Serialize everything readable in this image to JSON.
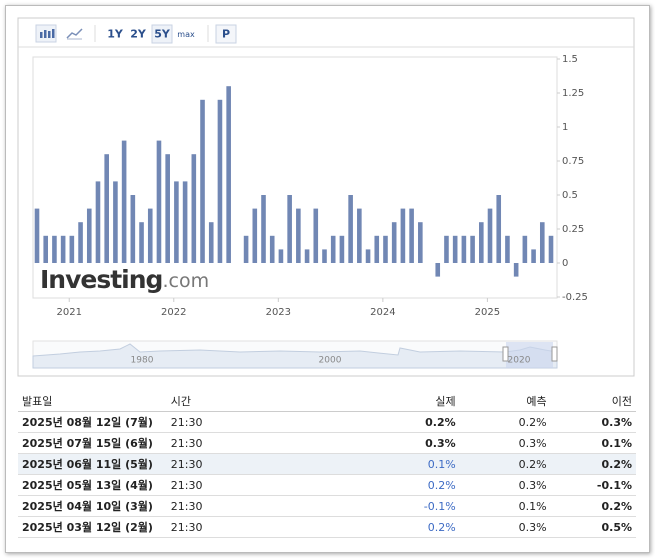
{
  "toolbar": {
    "ranges": [
      "1Y",
      "2Y",
      "5Y",
      "max"
    ],
    "selected": 2,
    "p_button": "P"
  },
  "chart_data": {
    "type": "bar",
    "color": "#7187b4",
    "categories": [
      null,
      null,
      null,
      null,
      null,
      null,
      null,
      null,
      null,
      null,
      null,
      null,
      null,
      null,
      null,
      null,
      null,
      null,
      null,
      null,
      null,
      null,
      null,
      null,
      null,
      null,
      null,
      null,
      null,
      null,
      null,
      null,
      null,
      null,
      null,
      null,
      null,
      null,
      null,
      null,
      null,
      null,
      null,
      null,
      null,
      null,
      null,
      null,
      null,
      null,
      null,
      null,
      null,
      null,
      null,
      null,
      null,
      null,
      null,
      null
    ],
    "values": [
      0.4,
      0.2,
      0.2,
      0.2,
      0.2,
      0.3,
      0.4,
      0.6,
      0.8,
      0.6,
      0.9,
      0.5,
      0.3,
      0.4,
      0.9,
      0.8,
      0.6,
      0.6,
      0.8,
      1.2,
      0.3,
      1.2,
      1.3,
      0,
      0.2,
      0.4,
      0.5,
      0.2,
      0.1,
      0.5,
      0.4,
      0.1,
      0.4,
      0.1,
      0.2,
      0.2,
      0.5,
      0.4,
      0.1,
      0.2,
      0.2,
      0.3,
      0.4,
      0.4,
      0.3,
      0,
      -0.1,
      0.2,
      0.2,
      0.2,
      0.2,
      0.3,
      0.4,
      0.5,
      0.2,
      -0.1,
      0.2,
      0.1,
      0.3,
      0.2
    ],
    "ylim": [
      -0.25,
      1.5
    ],
    "yticks": [
      1.5,
      1.25,
      1,
      0.75,
      0.5,
      0.25,
      0,
      -0.25
    ],
    "xticks": [
      {
        "value": 3.7,
        "label": "2021"
      },
      {
        "value": 15.7,
        "label": "2022"
      },
      {
        "value": 27.7,
        "label": "2023"
      },
      {
        "value": 39.7,
        "label": "2024"
      },
      {
        "value": 51.7,
        "label": "2025"
      }
    ],
    "navigator_labels": [
      "1980",
      "2000",
      "2020"
    ],
    "watermark": {
      "brand": "Investing",
      "suffix": ".com"
    }
  },
  "table": {
    "header": [
      "발표일",
      "시간",
      "실제",
      "예측",
      "이전"
    ],
    "rows": [
      [
        "2025년 08월 12일 (7월)",
        "21:30",
        "0.2%",
        "0.2%",
        "0.3%"
      ],
      [
        "2025년 07월 15일 (6월)",
        "21:30",
        "0.3%",
        "0.3%",
        "0.1%"
      ],
      [
        "2025년 06월 11일 (5월)",
        "21:30",
        "0.1%",
        "0.2%",
        "0.2%"
      ],
      [
        "2025년 05월 13일 (4월)",
        "21:30",
        "0.2%",
        "0.3%",
        "-0.1%"
      ],
      [
        "2025년 04월 10일 (3월)",
        "21:30",
        "-0.1%",
        "0.1%",
        "0.2%"
      ],
      [
        "2025년 03월 12일 (2월)",
        "21:30",
        "0.2%",
        "0.3%",
        "0.5%"
      ]
    ]
  }
}
